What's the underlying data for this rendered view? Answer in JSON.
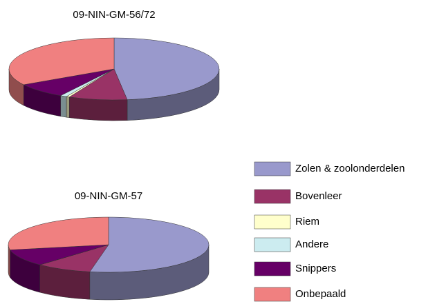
{
  "chart_data": [
    {
      "type": "pie",
      "title": "09-NIN-GM-56/72",
      "categories": [
        "Zolen & zoolonderdelen",
        "Bovenleer",
        "Riem",
        "Andere",
        "Snippers",
        "Onbepaald"
      ],
      "values": [
        48,
        9,
        0.5,
        1,
        8,
        33.5
      ],
      "colors": [
        "#9999cc",
        "#993366",
        "#ffffcc",
        "#ccecf0",
        "#660066",
        "#f08080"
      ]
    },
    {
      "type": "pie",
      "title": "09-NIN-GM-57",
      "categories": [
        "Zolen & zoolonderdelen",
        "Bovenleer",
        "Riem",
        "Andere",
        "Snippers",
        "Onbepaald"
      ],
      "values": [
        53,
        9,
        0,
        0,
        10,
        28
      ],
      "colors": [
        "#9999cc",
        "#993366",
        "#ffffcc",
        "#ccecf0",
        "#660066",
        "#f08080"
      ]
    }
  ]
}
